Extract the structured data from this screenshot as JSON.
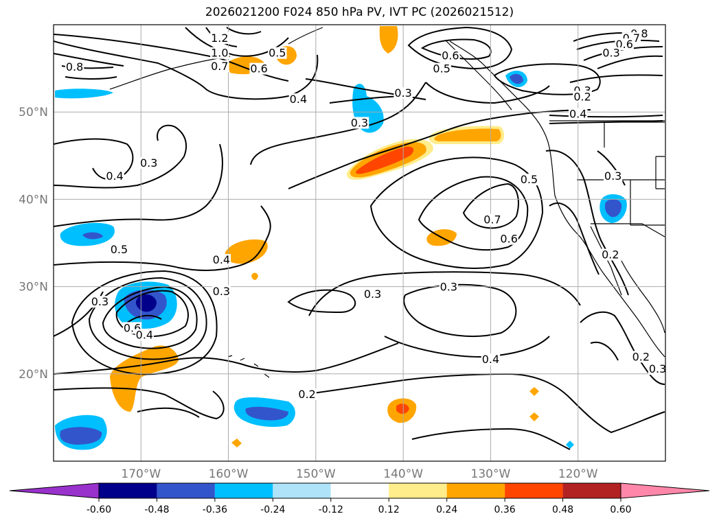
{
  "title": "2026021200 F024 850 hPa PV, IVT PC (2026021512)",
  "map": {
    "lat_range": [
      10,
      60
    ],
    "lon_range": [
      -180,
      -110
    ],
    "lat_ticks": [
      {
        "v": 50,
        "label": "50°N"
      },
      {
        "v": 40,
        "label": "40°N"
      },
      {
        "v": 30,
        "label": "30°N"
      },
      {
        "v": 20,
        "label": "20°N"
      }
    ],
    "lon_ticks": [
      {
        "v": -170,
        "label": "170°W"
      },
      {
        "v": -160,
        "label": "160°W"
      },
      {
        "v": -150,
        "label": "150°W"
      },
      {
        "v": -140,
        "label": "140°W"
      },
      {
        "v": -130,
        "label": "130°W"
      },
      {
        "v": -120,
        "label": "120°W"
      }
    ],
    "gridlines": true,
    "gridline_color": "#aaaaaa"
  },
  "colorbar": {
    "ticks": [
      "-0.60",
      "-0.48",
      "-0.36",
      "-0.24",
      "-0.12",
      "0.12",
      "0.24",
      "0.36",
      "0.48",
      "0.60"
    ],
    "under_color": "#9932cc",
    "over_color": "#ff88aa",
    "colors": [
      "#00008b",
      "#3355cc",
      "#00bfff",
      "#aee3fa",
      "#ffffff",
      "#ffec8b",
      "#ffa500",
      "#ff4500",
      "#b22222"
    ]
  },
  "contour_labels": [
    {
      "text": "0.8",
      "lon": -177.6,
      "lat": 55.2
    },
    {
      "text": "1.2",
      "lon": -161,
      "lat": 58.5
    },
    {
      "text": "1.0",
      "lon": -161,
      "lat": 56.8
    },
    {
      "text": "0.7",
      "lon": -161,
      "lat": 55.3
    },
    {
      "text": "0.6",
      "lon": -156.5,
      "lat": 55.0
    },
    {
      "text": "0.5",
      "lon": -154.4,
      "lat": 56.8
    },
    {
      "text": "0.4",
      "lon": -152,
      "lat": 51.5
    },
    {
      "text": "0.3",
      "lon": -140,
      "lat": 52.2
    },
    {
      "text": "0.3",
      "lon": -145,
      "lat": 48.8
    },
    {
      "text": "0.6",
      "lon": -134.6,
      "lat": 56.5
    },
    {
      "text": "0.5",
      "lon": -135.6,
      "lat": 55.0
    },
    {
      "text": "0.3",
      "lon": -119.5,
      "lat": 52.5
    },
    {
      "text": "0.2",
      "lon": -119.5,
      "lat": 51.8
    },
    {
      "text": "0.8",
      "lon": -113,
      "lat": 59.0
    },
    {
      "text": "0.7",
      "lon": -113.9,
      "lat": 58.5
    },
    {
      "text": "0.6",
      "lon": -114.7,
      "lat": 57.8
    },
    {
      "text": "0.3",
      "lon": -116.2,
      "lat": 56.8
    },
    {
      "text": "0.4",
      "lon": -120,
      "lat": 49.8
    },
    {
      "text": "0.4",
      "lon": -173,
      "lat": 42.7
    },
    {
      "text": "0.3",
      "lon": -169.1,
      "lat": 44.2
    },
    {
      "text": "0.5",
      "lon": -172.5,
      "lat": 34.3
    },
    {
      "text": "0.4",
      "lon": -160.8,
      "lat": 33.1
    },
    {
      "text": "0.3",
      "lon": -160.8,
      "lat": 29.5
    },
    {
      "text": "0.3",
      "lon": -174.7,
      "lat": 28.3
    },
    {
      "text": "0.6",
      "lon": -171,
      "lat": 25.3
    },
    {
      "text": "0.4",
      "lon": -169.6,
      "lat": 24.5
    },
    {
      "text": "0.3",
      "lon": -143.5,
      "lat": 29.2
    },
    {
      "text": "0.3",
      "lon": -134.8,
      "lat": 30.0
    },
    {
      "text": "0.7",
      "lon": -129.8,
      "lat": 37.7
    },
    {
      "text": "0.6",
      "lon": -127.9,
      "lat": 35.5
    },
    {
      "text": "0.5",
      "lon": -125.6,
      "lat": 42.3
    },
    {
      "text": "0.3",
      "lon": -116,
      "lat": 42.7
    },
    {
      "text": "0.2",
      "lon": -116.3,
      "lat": 33.7
    },
    {
      "text": "0.4",
      "lon": -130,
      "lat": 21.7
    },
    {
      "text": "0.2",
      "lon": -112.8,
      "lat": 22.0
    },
    {
      "text": "0.3",
      "lon": -110.9,
      "lat": 20.6
    },
    {
      "text": "0.2",
      "lon": -151,
      "lat": 17.7
    }
  ]
}
